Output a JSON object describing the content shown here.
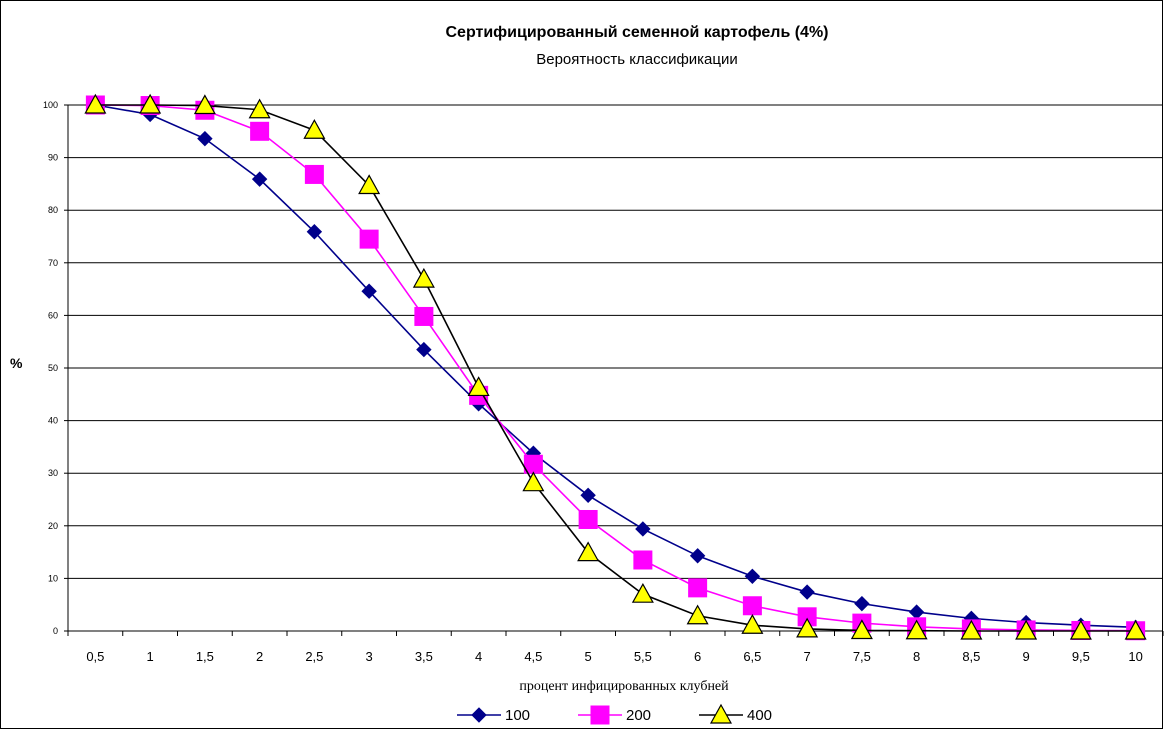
{
  "chart_data": {
    "type": "line",
    "title": "Сертифицированный семенной картофель (4%)",
    "subtitle": "Вероятность классификации",
    "xlabel": "процент инфицированных клубней",
    "ylabel": "%",
    "categories": [
      "0,5",
      "1",
      "1,5",
      "2",
      "2,5",
      "3",
      "3,5",
      "4",
      "4,5",
      "5",
      "5,5",
      "6",
      "6,5",
      "7",
      "7,5",
      "8",
      "8,5",
      "9",
      "9,5",
      "10"
    ],
    "y_ticks": [
      "0",
      "10",
      "20",
      "30",
      "40",
      "50",
      "60",
      "70",
      "80",
      "90",
      "100"
    ],
    "ylim": [
      0,
      100
    ],
    "grid": true,
    "legend_position": "bottom",
    "series": [
      {
        "name": "100",
        "color": "#00008B",
        "marker": "diamond",
        "values": [
          100,
          98.2,
          93.6,
          85.9,
          75.9,
          64.6,
          53.5,
          43.2,
          33.8,
          25.8,
          19.4,
          14.3,
          10.4,
          7.4,
          5.2,
          3.6,
          2.4,
          1.6,
          1.1,
          0.7
        ]
      },
      {
        "name": "200",
        "color": "#FF00FF",
        "marker": "square",
        "values": [
          100,
          99.9,
          99,
          95,
          86.8,
          74.5,
          59.8,
          44.8,
          31.7,
          21.2,
          13.5,
          8.2,
          4.8,
          2.7,
          1.5,
          0.8,
          0.4,
          0.2,
          0.1,
          0.05
        ]
      },
      {
        "name": "400",
        "color": "#000000",
        "marker": "triangle",
        "fill": "#FFFF00",
        "values": [
          100,
          100,
          99.9,
          99.1,
          95.2,
          84.7,
          66.9,
          46.3,
          28.2,
          14.9,
          7,
          2.9,
          1.1,
          0.4,
          0.1,
          0.05,
          0,
          0,
          0,
          0
        ]
      }
    ]
  }
}
